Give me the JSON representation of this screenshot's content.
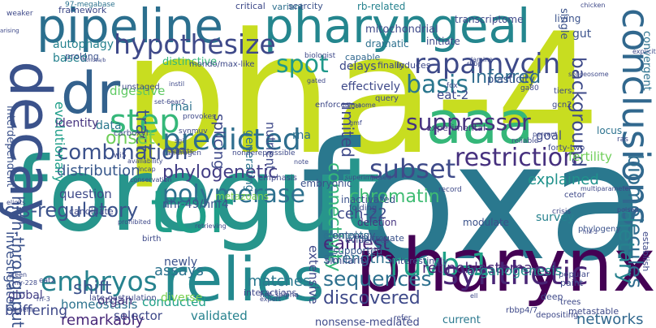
{
  "colors": {
    "background": "#ffffff",
    "palette": [
      "#440154",
      "#482878",
      "#3e4989",
      "#31688e",
      "#26828e",
      "#1f9e89",
      "#35b779",
      "#6ece58",
      "#b5de2b",
      "#c8dd20"
    ]
  },
  "words": [
    {
      "text": "pha-4",
      "color": "#c8dd20",
      "orientation": "horizontal"
    },
    {
      "text": "foxa",
      "color": "#2a788e",
      "orientation": "horizontal"
    },
    {
      "text": "foregut",
      "color": "#27958c",
      "orientation": "horizontal"
    },
    {
      "text": "pharyngeal",
      "color": "#24868e",
      "orientation": "horizontal"
    },
    {
      "text": "pipeline",
      "color": "#2b6f8e",
      "orientation": "horizontal"
    },
    {
      "text": "pharynx",
      "color": "#440154",
      "orientation": "horizontal"
    },
    {
      "text": "relies",
      "color": "#23898e",
      "orientation": "horizontal"
    },
    {
      "text": "decay",
      "color": "#3b528b",
      "orientation": "vertical"
    },
    {
      "text": "tor",
      "color": "#1f9e89",
      "orientation": "horizontal"
    },
    {
      "text": "dr",
      "color": "#33618d",
      "orientation": "horizontal"
    },
    {
      "text": "aaa",
      "color": "#35b779",
      "orientation": "horizontal"
    },
    {
      "text": "hypothesize",
      "color": "#3e4989",
      "orientation": "horizontal"
    },
    {
      "text": "rapamycin",
      "color": "#3e4a89",
      "orientation": "horizontal"
    },
    {
      "text": "conclusions",
      "color": "#31688e",
      "orientation": "vertical"
    },
    {
      "text": "predicted",
      "color": "#2e6e8e",
      "orientation": "horizontal"
    },
    {
      "text": "polymerase",
      "color": "#2d708e",
      "orientation": "horizontal"
    },
    {
      "text": "step",
      "color": "#35b779",
      "orientation": "horizontal"
    },
    {
      "text": "embryos",
      "color": "#26828e",
      "orientation": "horizontal"
    },
    {
      "text": "restriction",
      "color": "#46307e",
      "orientation": "horizontal"
    },
    {
      "text": "ruvb-1",
      "color": "#1fa187",
      "orientation": "horizontal"
    },
    {
      "text": "biomolecules",
      "color": "#2f6c8e",
      "orientation": "vertical"
    },
    {
      "text": "synthetic",
      "color": "#482475",
      "orientation": "horizontal"
    },
    {
      "text": "suppressor",
      "color": "#46327e",
      "orientation": "horizontal"
    },
    {
      "text": "combination",
      "color": "#3b518b",
      "orientation": "horizontal"
    },
    {
      "text": "subset",
      "color": "#3e4a89",
      "orientation": "horizontal"
    },
    {
      "text": "sequences",
      "color": "#2d708e",
      "orientation": "horizontal"
    },
    {
      "text": "discovered",
      "color": "#3e4989",
      "orientation": "horizontal"
    },
    {
      "text": "dietary",
      "color": "#26828e",
      "orientation": "vertical"
    },
    {
      "text": "basis",
      "color": "#2a768e",
      "orientation": "horizontal"
    },
    {
      "text": "spot",
      "color": "#1f988b",
      "orientation": "horizontal"
    },
    {
      "text": "background",
      "color": "#3e4a89",
      "orientation": "vertical"
    },
    {
      "text": "inferred",
      "color": "#2f6b8e",
      "orientation": "horizontal"
    },
    {
      "text": "tract",
      "color": "#3b528b",
      "orientation": "vertical"
    },
    {
      "text": "cis-regulatory",
      "color": "#3b528b",
      "orientation": "horizontal"
    },
    {
      "text": "phylogenetic",
      "color": "#433e85",
      "orientation": "horizontal"
    },
    {
      "text": "distribution",
      "color": "#38588c",
      "orientation": "horizontal"
    },
    {
      "text": "onset",
      "color": "#6ece58",
      "orientation": "horizontal"
    },
    {
      "text": "chromatin",
      "color": "#3fbc73",
      "orientation": "horizontal"
    },
    {
      "text": "earliest",
      "color": "#482878",
      "orientation": "horizontal"
    },
    {
      "text": "ceh-22",
      "color": "#3e4989",
      "orientation": "horizontal"
    },
    {
      "text": "strengths",
      "color": "#2e6f8e",
      "orientation": "horizontal"
    },
    {
      "text": "explained",
      "color": "#20928c",
      "orientation": "horizontal"
    },
    {
      "text": "networks",
      "color": "#31688e",
      "orientation": "horizontal"
    },
    {
      "text": "retinoblastoma",
      "color": "#482878",
      "orientation": "horizontal"
    },
    {
      "text": "matches",
      "color": "#2a788e",
      "orientation": "horizontal"
    },
    {
      "text": "assays",
      "color": "#2c728e",
      "orientation": "horizontal"
    },
    {
      "text": "shift",
      "color": "#3b528b",
      "orientation": "horizontal"
    },
    {
      "text": "nhr-49/hnf4",
      "color": "#3b528b",
      "orientation": "horizontal"
    },
    {
      "text": "metazoans",
      "color": "#7ad151",
      "orientation": "horizontal"
    },
    {
      "text": "high-throughput",
      "color": "#3b528b",
      "orientation": "vertical"
    },
    {
      "text": "remarkably",
      "color": "#482878",
      "orientation": "horizontal"
    },
    {
      "text": "validated",
      "color": "#26828e",
      "orientation": "horizontal"
    },
    {
      "text": "selector",
      "color": "#3e4989",
      "orientation": "horizontal"
    },
    {
      "text": "buffering",
      "color": "#3e4989",
      "orientation": "horizontal"
    },
    {
      "text": "homeostasis",
      "color": "#2c728e",
      "orientation": "horizontal"
    },
    {
      "text": "organogenesis",
      "color": "#21918c",
      "orientation": "horizontal"
    },
    {
      "text": "investigated",
      "color": "#3b528b",
      "orientation": "vertical"
    },
    {
      "text": "connectivity",
      "color": "#35b779",
      "orientation": "vertical"
    },
    {
      "text": "fertility",
      "color": "#6ece58",
      "orientation": "horizontal"
    },
    {
      "text": "goal",
      "color": "#3e4989",
      "orientation": "horizontal"
    },
    {
      "text": "limited",
      "color": "#3e4989",
      "orientation": "vertical"
    },
    {
      "text": "evolutionary",
      "color": "#1f9e89",
      "orientation": "vertical"
    },
    {
      "text": "identity",
      "color": "#46337f",
      "orientation": "horizontal"
    },
    {
      "text": "digestive",
      "color": "#5ec962",
      "orientation": "horizontal"
    },
    {
      "text": "question",
      "color": "#3e4989",
      "orientation": "horizontal"
    },
    {
      "text": "organ",
      "color": "#46327e",
      "orientation": "horizontal"
    },
    {
      "text": "global",
      "color": "#433e85",
      "orientation": "horizontal"
    },
    {
      "text": "conducted",
      "color": "#1fa088",
      "orientation": "horizontal"
    },
    {
      "text": "diverse",
      "color": "#7ad151",
      "orientation": "horizontal"
    },
    {
      "text": "splicing",
      "color": "#3e4989",
      "orientation": "vertical"
    },
    {
      "text": "effectively",
      "color": "#3e4989",
      "orientation": "horizontal"
    },
    {
      "text": "delays",
      "color": "#3e4989",
      "orientation": "horizontal"
    },
    {
      "text": "eat-2",
      "color": "#3e4989",
      "orientation": "horizontal"
    },
    {
      "text": "supported",
      "color": "#38588c",
      "orientation": "horizontal"
    },
    {
      "text": "survey",
      "color": "#26828e",
      "orientation": "horizontal"
    },
    {
      "text": "deletion",
      "color": "#46337f",
      "orientation": "horizontal"
    },
    {
      "text": "nutrient",
      "color": "#3e4989",
      "orientation": "vertical"
    },
    {
      "text": "generating",
      "color": "#2c728e",
      "orientation": "vertical"
    },
    {
      "text": "rna",
      "color": "#2d708e",
      "orientation": "horizontal"
    },
    {
      "text": "data",
      "color": "#2a788e",
      "orientation": "horizontal"
    },
    {
      "text": "rnai",
      "color": "#2c728e",
      "orientation": "horizontal"
    },
    {
      "text": "locus",
      "color": "#2c728e",
      "orientation": "horizontal"
    },
    {
      "text": "modulate",
      "color": "#3b528b",
      "orientation": "horizontal"
    },
    {
      "text": "experimental",
      "color": "#46337f",
      "orientation": "horizontal"
    },
    {
      "text": "extensive",
      "color": "#3e4989",
      "orientation": "vertical"
    },
    {
      "text": "similarity",
      "color": "#3e4989",
      "orientation": "horizontal"
    },
    {
      "text": "current",
      "color": "#2a788e",
      "orientation": "horizontal"
    },
    {
      "text": "newly",
      "color": "#3b528b",
      "orientation": "horizontal"
    },
    {
      "text": "based",
      "color": "#26828e",
      "orientation": "horizontal"
    },
    {
      "text": "autophagy",
      "color": "#26828e",
      "orientation": "horizontal"
    },
    {
      "text": "prolong",
      "color": "#3b528b",
      "orientation": "horizontal"
    },
    {
      "text": "distinctive",
      "color": "#35b779",
      "orientation": "horizontal"
    },
    {
      "text": "capable",
      "color": "#31688e",
      "orientation": "horizontal"
    },
    {
      "text": "finally",
      "color": "#3e4989",
      "orientation": "horizontal"
    },
    {
      "text": "gut",
      "color": "#3b528b",
      "orientation": "horizontal"
    },
    {
      "text": "single",
      "color": "#3b528b",
      "orientation": "vertical"
    },
    {
      "text": "mitochondrial",
      "color": "#3e4989",
      "orientation": "horizontal"
    },
    {
      "text": "transcriptome",
      "color": "#3e4989",
      "orientation": "horizontal"
    },
    {
      "text": "rb-related",
      "color": "#26828e",
      "orientation": "horizontal"
    },
    {
      "text": "critical",
      "color": "#3e4989",
      "orientation": "horizontal"
    },
    {
      "text": "framework",
      "color": "#3e4989",
      "orientation": "horizontal"
    },
    {
      "text": "97-megabase",
      "color": "#2c728e",
      "orientation": "horizontal"
    },
    {
      "text": "variant",
      "color": "#2d708e",
      "orientation": "horizontal"
    },
    {
      "text": "scarcity",
      "color": "#3b528b",
      "orientation": "horizontal"
    },
    {
      "text": "initiate",
      "color": "#3e4989",
      "orientation": "horizontal"
    },
    {
      "text": "dramatic",
      "color": "#2d708e",
      "orientation": "horizontal"
    },
    {
      "text": "plasticity",
      "color": "#3b528b",
      "orientation": "horizontal"
    },
    {
      "text": "induces",
      "color": "#3e4989",
      "orientation": "horizontal"
    },
    {
      "text": "living",
      "color": "#3b528b",
      "orientation": "horizontal"
    },
    {
      "text": "convergent",
      "color": "#2c728e",
      "orientation": "vertical"
    },
    {
      "text": "interdependent",
      "color": "#3b528b",
      "orientation": "vertical"
    },
    {
      "text": "ontology",
      "color": "#3b528b",
      "orientation": "horizontal"
    },
    {
      "text": "evidence",
      "color": "#3b528b",
      "orientation": "horizontal"
    },
    {
      "text": "elements",
      "color": "#2c728e",
      "orientation": "horizontal"
    },
    {
      "text": "inactivated",
      "color": "#3b528b",
      "orientation": "horizontal"
    },
    {
      "text": "phylogeny",
      "color": "#3b528b",
      "orientation": "horizontal"
    },
    {
      "text": "embryonic",
      "color": "#3b528b",
      "orientation": "horizontal"
    },
    {
      "text": "folding",
      "color": "#3e4989",
      "orientation": "horizontal"
    },
    {
      "text": "surrogate",
      "color": "#3b528b",
      "orientation": "horizontal"
    },
    {
      "text": "establish",
      "color": "#3e4989",
      "orientation": "vertical"
    },
    {
      "text": "popular",
      "color": "#3e4989",
      "orientation": "horizontal"
    },
    {
      "text": "interestingly",
      "color": "#3e4989",
      "orientation": "horizontal"
    },
    {
      "text": "nonsense-mediated",
      "color": "#3e4989",
      "orientation": "horizontal"
    },
    {
      "text": "interactions",
      "color": "#3e4989",
      "orientation": "horizontal"
    },
    {
      "text": "late-gastrulation",
      "color": "#3e4989",
      "orientation": "horizontal"
    },
    {
      "text": "candidate",
      "color": "#3e4989",
      "orientation": "horizontal"
    },
    {
      "text": "emphasis",
      "color": "#3e4989",
      "orientation": "horizontal"
    },
    {
      "text": "depositing",
      "color": "#3e4989",
      "orientation": "horizontal"
    },
    {
      "text": "metastable",
      "color": "#3e4989",
      "orientation": "horizontal"
    },
    {
      "text": "deep",
      "color": "#3e4989",
      "orientation": "horizontal"
    },
    {
      "text": "trees",
      "color": "#3e4989",
      "orientation": "horizontal"
    },
    {
      "text": "paint",
      "color": "#3e4989",
      "orientation": "horizontal"
    },
    {
      "text": "refer",
      "color": "#3e4989",
      "orientation": "horizontal"
    },
    {
      "text": "mir-228",
      "color": "#3e4989",
      "orientation": "horizontal"
    },
    {
      "text": "birth",
      "color": "#3e4989",
      "orientation": "horizontal"
    },
    {
      "text": "expert",
      "color": "#3e4989",
      "orientation": "horizontal"
    },
    {
      "text": "cohorts",
      "color": "#3e4989",
      "orientation": "horizontal"
    },
    {
      "text": "provokes",
      "color": "#3e4989",
      "orientation": "horizontal"
    },
    {
      "text": "synmuv",
      "color": "#3e4989",
      "orientation": "horizontal"
    },
    {
      "text": "unstaged",
      "color": "#3e4989",
      "orientation": "horizontal"
    },
    {
      "text": "set-6",
      "color": "#3e4989",
      "orientation": "horizontal"
    },
    {
      "text": "carboxyl",
      "color": "#3e4989",
      "orientation": "horizontal"
    },
    {
      "text": "eat2",
      "color": "#3e4989",
      "orientation": "horizontal"
    },
    {
      "text": "note",
      "color": "#3e4989",
      "orientation": "horizontal"
    },
    {
      "text": "query",
      "color": "#3e4989",
      "orientation": "horizontal"
    },
    {
      "text": "mirnaome",
      "color": "#3e4989",
      "orientation": "horizontal"
    },
    {
      "text": "record",
      "color": "#3e4989",
      "orientation": "horizontal"
    },
    {
      "text": "crisis",
      "color": "#3e4989",
      "orientation": "horizontal"
    },
    {
      "text": "tiers",
      "color": "#3e4989",
      "orientation": "horizontal"
    },
    {
      "text": "gcn2",
      "color": "#3e4989",
      "orientation": "horizontal"
    },
    {
      "text": "ga80",
      "color": "#3e4989",
      "orientation": "horizontal"
    },
    {
      "text": "percent",
      "color": "#3e4989",
      "orientation": "horizontal"
    },
    {
      "text": "reliable",
      "color": "#3e4989",
      "orientation": "horizontal"
    },
    {
      "text": "forty-two",
      "color": "#3e4989",
      "orientation": "horizontal"
    },
    {
      "text": "ras",
      "color": "#3e4989",
      "orientation": "horizontal"
    },
    {
      "text": "cetor",
      "color": "#3e4989",
      "orientation": "horizontal"
    },
    {
      "text": "enforces",
      "color": "#3e4989",
      "orientation": "horizontal"
    },
    {
      "text": "fox",
      "color": "#3e4989",
      "orientation": "horizontal"
    },
    {
      "text": "lamina",
      "color": "#3e4989",
      "orientation": "horizontal"
    },
    {
      "text": "rbbp",
      "color": "#3e4989",
      "orientation": "horizontal"
    },
    {
      "text": "biologist",
      "color": "#3e4989",
      "orientation": "horizontal"
    },
    {
      "text": "mondo/max-like",
      "color": "#3e4989",
      "orientation": "horizontal"
    },
    {
      "text": "androgen",
      "color": "#3e4989",
      "orientation": "horizontal"
    },
    {
      "text": "retrieving",
      "color": "#3e4989",
      "orientation": "horizontal"
    },
    {
      "text": "rbbp4/7",
      "color": "#3e4989",
      "orientation": "horizontal"
    },
    {
      "text": "ell",
      "color": "#3e4989",
      "orientation": "horizontal"
    },
    {
      "text": "chicken",
      "color": "#3e4989",
      "orientation": "horizontal"
    },
    {
      "text": "explicit",
      "color": "#3e4989",
      "orientation": "horizontal"
    },
    {
      "text": "multiparameter",
      "color": "#3e4989",
      "orientation": "horizontal"
    },
    {
      "text": "hnf-3alpha",
      "color": "#3e4989",
      "orientation": "horizontal"
    },
    {
      "text": "superimposed",
      "color": "#3e4989",
      "orientation": "horizontal"
    },
    {
      "text": "nonderepressible",
      "color": "#3e4989",
      "orientation": "horizontal"
    },
    {
      "text": "wi5",
      "color": "#3e4989",
      "orientation": "horizontal"
    },
    {
      "text": "ear2",
      "color": "#3e4989",
      "orientation": "horizontal"
    },
    {
      "text": "pol",
      "color": "#3e4989",
      "orientation": "horizontal"
    },
    {
      "text": "instil",
      "color": "#3e4989",
      "orientation": "horizontal"
    },
    {
      "text": "prohibited",
      "color": "#3e4989",
      "orientation": "horizontal"
    },
    {
      "text": "lncap",
      "color": "#3e4989",
      "orientation": "horizontal"
    },
    {
      "text": "green",
      "color": "#3e4989",
      "orientation": "horizontal"
    },
    {
      "text": "emerin",
      "color": "#3e4989",
      "orientation": "horizontal"
    },
    {
      "text": "conservation",
      "color": "#3e4989",
      "orientation": "horizontal"
    },
    {
      "text": "availability",
      "color": "#3e4989",
      "orientation": "horizontal"
    },
    {
      "text": "sgi",
      "color": "#3e4989",
      "orientation": "horizontal"
    },
    {
      "text": "rrf-3",
      "color": "#3e4989",
      "orientation": "horizontal"
    },
    {
      "text": "elicits",
      "color": "#3e4989",
      "orientation": "horizontal"
    },
    {
      "text": "weaker",
      "color": "#3e4989",
      "orientation": "horizontal"
    },
    {
      "text": "arising",
      "color": "#3e4989",
      "orientation": "horizontal"
    },
    {
      "text": "mondoa/b",
      "color": "#3e4989",
      "orientation": "horizontal"
    },
    {
      "text": "gmf",
      "color": "#3e4989",
      "orientation": "horizontal"
    },
    {
      "text": "poised",
      "color": "#3e4989",
      "orientation": "horizontal"
    },
    {
      "text": "hnf-3",
      "color": "#3e4989",
      "orientation": "horizontal"
    },
    {
      "text": "spliceosome",
      "color": "#3e4989",
      "orientation": "horizontal"
    },
    {
      "text": "gated",
      "color": "#3e4989",
      "orientation": "horizontal"
    }
  ]
}
